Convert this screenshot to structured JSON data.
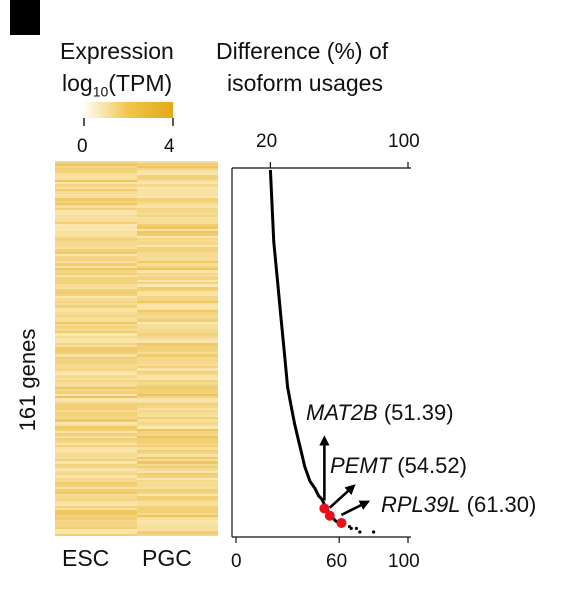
{
  "panel_marker": "",
  "heatmap_panel": {
    "title_line1": "Expression",
    "title_line2_main": "log",
    "title_line2_sub": "10",
    "title_line2_tail": "(TPM)",
    "colorbar_min": "0",
    "colorbar_max": "4",
    "colorbar_colors": [
      "#fffdf3",
      "#f0c54c",
      "#e6a715"
    ],
    "row_label": "161 genes",
    "columns": [
      "ESC",
      "PGC"
    ]
  },
  "chart_data": {
    "type": "line",
    "title_line1": "Difference (%) of",
    "title_line2": "isoform usages",
    "top_axis_ticks": [
      "20",
      "100"
    ],
    "bottom_axis_ticks": [
      "0",
      "60",
      "100"
    ],
    "xlim": [
      0,
      100
    ],
    "line_color": "#000000",
    "highlight_color": "#e8121c",
    "sorted_difference_curve": {
      "x": [
        20,
        21,
        22,
        24,
        26,
        28,
        30,
        32,
        34,
        36,
        38,
        40,
        43,
        46,
        48,
        50,
        52,
        53,
        55,
        56,
        58,
        60,
        63
      ],
      "rank_fraction": [
        0.0,
        0.1,
        0.2,
        0.3,
        0.4,
        0.5,
        0.6,
        0.65,
        0.7,
        0.74,
        0.78,
        0.82,
        0.86,
        0.88,
        0.9,
        0.91,
        0.93,
        0.94,
        0.95,
        0.96,
        0.97,
        0.975,
        0.98
      ]
    },
    "tail_points": [
      {
        "x": 66,
        "rank_fraction": 0.985
      },
      {
        "x": 67,
        "rank_fraction": 0.99
      },
      {
        "x": 70,
        "rank_fraction": 0.99
      },
      {
        "x": 72,
        "rank_fraction": 1.0
      },
      {
        "x": 80,
        "rank_fraction": 1.0
      }
    ],
    "highlighted_genes": [
      {
        "gene": "MAT2B",
        "value": "(51.39)",
        "x": 51.39,
        "rank_fraction": 0.935
      },
      {
        "gene": "PEMT",
        "value": "(54.52)",
        "x": 54.52,
        "rank_fraction": 0.955
      },
      {
        "gene": "RPL39L",
        "value": "(61.30)",
        "x": 61.3,
        "rank_fraction": 0.975
      }
    ]
  }
}
